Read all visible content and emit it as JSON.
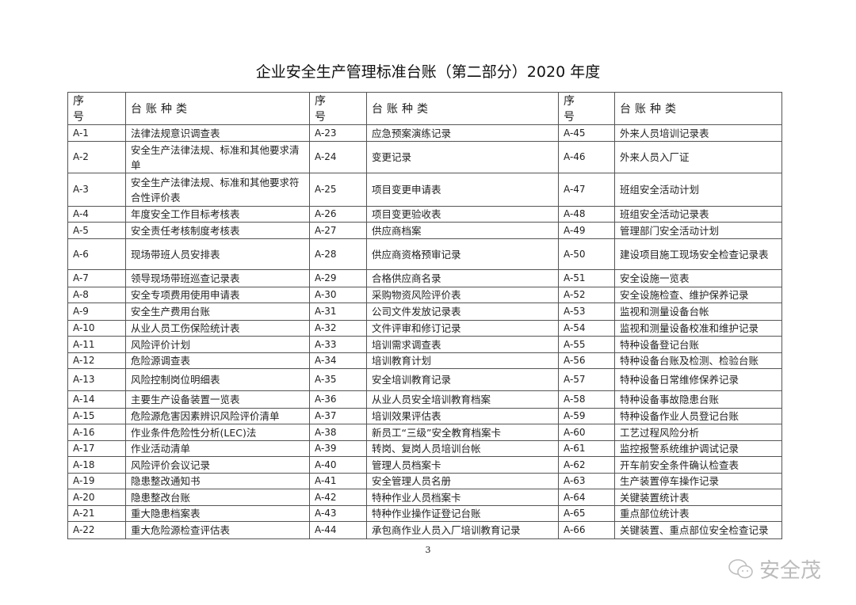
{
  "title": "企业安全生产管理标准台账（第二部分）2020 年度",
  "headers": {
    "seq": "序 号",
    "kind": "台账种类"
  },
  "rows": [
    [
      [
        "A-1",
        "法律法规意识调查表"
      ],
      [
        "A-23",
        "应急预案演练记录"
      ],
      [
        "A-45",
        "外来人员培训记录表"
      ]
    ],
    [
      [
        "A-2",
        "安全生产法律法规、标准和其他要求清单"
      ],
      [
        "A-24",
        "变更记录"
      ],
      [
        "A-46",
        "外来人员入厂证"
      ]
    ],
    [
      [
        "A-3",
        "安全生产法律法规、标准和其他要求符合性评价表"
      ],
      [
        "A-25",
        "项目变更申请表"
      ],
      [
        "A-47",
        "班组安全活动计划"
      ]
    ],
    [
      [
        "A-4",
        "年度安全工作目标考核表"
      ],
      [
        "A-26",
        "项目变更验收表"
      ],
      [
        "A-48",
        "班组安全活动记录表"
      ]
    ],
    [
      [
        "A-5",
        "安全责任考核制度考核表"
      ],
      [
        "A-27",
        "供应商档案"
      ],
      [
        "A-49",
        "管理部门安全活动计划"
      ]
    ],
    [
      [
        "A-6",
        "现场带班人员安排表"
      ],
      [
        "A-28",
        "供应商资格预审记录"
      ],
      [
        "A-50",
        "建设项目施工现场安全检查记录表"
      ]
    ],
    [
      [
        "A-7",
        "领导现场带班巡查记录表"
      ],
      [
        "A-29",
        "合格供应商名录"
      ],
      [
        "A-51",
        "安全设施一览表"
      ]
    ],
    [
      [
        "A-8",
        "安全专项费用使用申请表"
      ],
      [
        "A-30",
        "采购物资风险评价表"
      ],
      [
        "A-52",
        "安全设施检查、维护保养记录"
      ]
    ],
    [
      [
        "A-9",
        "安全生产费用台账"
      ],
      [
        "A-31",
        "公司文件发放记录表"
      ],
      [
        "A-53",
        "监视和测量设备台帐"
      ]
    ],
    [
      [
        "A-10",
        "从业人员工伤保险统计表"
      ],
      [
        "A-32",
        "文件评审和修订记录"
      ],
      [
        "A-54",
        "监视和测量设备校准和维护记录"
      ]
    ],
    [
      [
        "A-11",
        "风险评价计划"
      ],
      [
        "A-33",
        "培训需求调查表"
      ],
      [
        "A-55",
        "特种设备登记台账"
      ]
    ],
    [
      [
        "A-12",
        "危险源调查表"
      ],
      [
        "A-34",
        "培训教育计划"
      ],
      [
        "A-56",
        "特种设备台账及检测、检验台账"
      ]
    ],
    [
      [
        "A-13",
        "风险控制岗位明细表"
      ],
      [
        "A-35",
        "安全培训教育记录"
      ],
      [
        "A-57",
        "特种设备日常维修保养记录"
      ]
    ],
    [
      [
        "A-14",
        "主要生产设备装置一览表"
      ],
      [
        "A-36",
        "从业人员安全培训教育档案"
      ],
      [
        "A-58",
        "特种设备事故隐患台账"
      ]
    ],
    [
      [
        "A-15",
        "危险源危害因素辨识风险评价清单"
      ],
      [
        "A-37",
        "培训效果评估表"
      ],
      [
        "A-59",
        "特种设备作业人员登记台账"
      ]
    ],
    [
      [
        "A-16",
        "作业条件危险性分析(LEC)法"
      ],
      [
        "A-38",
        "新员工“三级”安全教育档案卡"
      ],
      [
        "A-60",
        "工艺过程风险分析"
      ]
    ],
    [
      [
        "A-17",
        "作业活动清单"
      ],
      [
        "A-39",
        "转岗、复岗人员培训台帐"
      ],
      [
        "A-61",
        "监控报警系统维护调试记录"
      ]
    ],
    [
      [
        "A-18",
        "风险评价会议记录"
      ],
      [
        "A-40",
        "管理人员档案卡"
      ],
      [
        "A-62",
        "开车前安全条件确认检查表"
      ]
    ],
    [
      [
        "A-19",
        "隐患整改通知书"
      ],
      [
        "A-41",
        "安全管理人员名册"
      ],
      [
        "A-63",
        "生产装置停车操作记录"
      ]
    ],
    [
      [
        "A-20",
        "隐患整改台账"
      ],
      [
        "A-42",
        "特种作业人员档案卡"
      ],
      [
        "A-64",
        "关键装置统计表"
      ]
    ],
    [
      [
        "A-21",
        "重大隐患档案表"
      ],
      [
        "A-43",
        "特种作业操作证登记台账"
      ],
      [
        "A-65",
        "重点部位统计表"
      ]
    ],
    [
      [
        "A-22",
        "重大危险源检查评估表"
      ],
      [
        "A-44",
        "承包商作业人员入厂培训教育记录"
      ],
      [
        "A-66",
        "关键装置、重点部位安全检查记录"
      ]
    ]
  ],
  "page_number": "3",
  "watermark": "安全茂"
}
